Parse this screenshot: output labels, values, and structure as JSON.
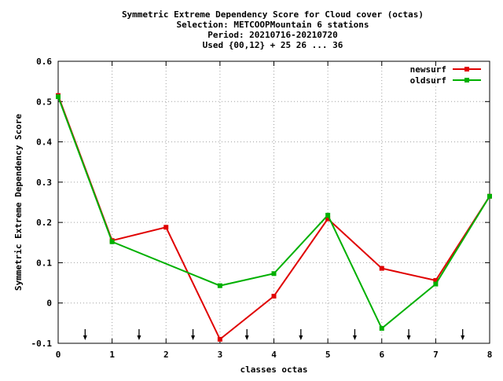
{
  "chart_data": {
    "type": "line",
    "title_lines": [
      "Symmetric Extreme Dependency Score  for Cloud cover (octas)",
      "Selection: METCOOPMountain      6 stations",
      "Period: 20210716-20210720",
      "Used {00,12} + 25 26 ... 36"
    ],
    "xlabel": "classes octas",
    "ylabel": "Symmetric Extreme Dependency Score",
    "xlim": [
      0,
      8
    ],
    "ylim": [
      -0.1,
      0.6
    ],
    "x_ticks": [
      0,
      1,
      2,
      3,
      4,
      5,
      6,
      7,
      8
    ],
    "x_tick_labels": [
      "0",
      "1",
      "2",
      "3",
      "4",
      "5",
      "6",
      "7",
      "8"
    ],
    "y_ticks": [
      -0.1,
      0,
      0.1,
      0.2,
      0.3,
      0.4,
      0.5,
      0.6
    ],
    "y_tick_labels": [
      "-0.1",
      "0",
      "0.1",
      "0.2",
      "0.3",
      "0.4",
      "0.5",
      "0.6"
    ],
    "grid": true,
    "legend_position": "top-right",
    "arrow_markers_x": [
      0.5,
      1.5,
      2.5,
      3.5,
      4.5,
      5.5,
      6.5,
      7.5
    ],
    "series": [
      {
        "name": "newsurf",
        "color": "#e00000",
        "x": [
          0,
          1,
          2,
          3,
          4,
          5,
          6,
          7,
          8
        ],
        "values": [
          0.515,
          0.155,
          0.188,
          -0.09,
          0.017,
          0.209,
          0.086,
          0.056,
          0.265
        ]
      },
      {
        "name": "oldsurf",
        "color": "#00b000",
        "x": [
          0,
          1,
          2,
          3,
          4,
          5,
          6,
          7,
          8
        ],
        "values": [
          0.512,
          0.152,
          null,
          0.043,
          0.073,
          0.218,
          -0.063,
          0.047,
          0.265
        ]
      }
    ]
  }
}
